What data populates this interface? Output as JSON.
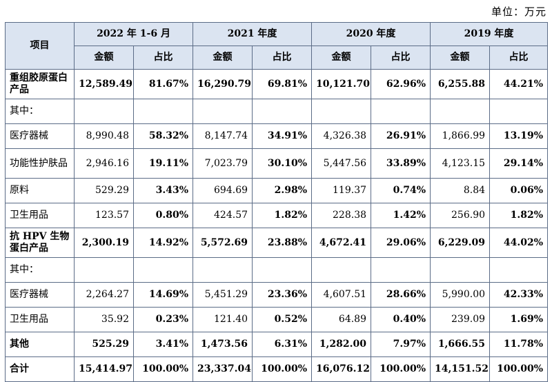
{
  "unit_label": "单位：万元",
  "header": {
    "project": "项目",
    "periods": [
      "2022 年 1-6 月",
      "2021 年度",
      "2020 年度",
      "2019 年度"
    ],
    "amount": "金额",
    "ratio": "占比"
  },
  "rows": [
    {
      "label": "重组胶原蛋白产品",
      "values": [
        "12,589.49",
        "81.67%",
        "16,290.79",
        "69.81%",
        "10,121.70",
        "62.96%",
        "6,255.88",
        "44.21%"
      ]
    },
    {
      "label": "其中：",
      "values": [
        "",
        "",
        "",
        "",
        "",
        "",
        "",
        ""
      ]
    },
    {
      "label": "医疗器械",
      "values": [
        "8,990.48",
        "58.32%",
        "8,147.74",
        "34.91%",
        "4,326.38",
        "26.91%",
        "1,866.99",
        "13.19%"
      ]
    },
    {
      "label": "功能性护肤品",
      "values": [
        "2,946.16",
        "19.11%",
        "7,023.79",
        "30.10%",
        "5,447.56",
        "33.89%",
        "4,123.15",
        "29.14%"
      ]
    },
    {
      "label": "原料",
      "values": [
        "529.29",
        "3.43%",
        "694.69",
        "2.98%",
        "119.37",
        "0.74%",
        "8.84",
        "0.06%"
      ]
    },
    {
      "label": "卫生用品",
      "values": [
        "123.57",
        "0.80%",
        "424.57",
        "1.82%",
        "228.38",
        "1.42%",
        "256.90",
        "1.82%"
      ]
    },
    {
      "label": "抗 HPV 生物蛋白产品",
      "values": [
        "2,300.19",
        "14.92%",
        "5,572.69",
        "23.88%",
        "4,672.41",
        "29.06%",
        "6,229.09",
        "44.02%"
      ]
    },
    {
      "label": "其中：",
      "values": [
        "",
        "",
        "",
        "",
        "",
        "",
        "",
        ""
      ]
    },
    {
      "label": "医疗器械",
      "values": [
        "2,264.27",
        "14.69%",
        "5,451.29",
        "23.36%",
        "4,607.51",
        "28.66%",
        "5,990.00",
        "42.33%"
      ]
    },
    {
      "label": "卫生用品",
      "values": [
        "35.92",
        "0.23%",
        "121.40",
        "0.52%",
        "64.89",
        "0.40%",
        "239.09",
        "1.69%"
      ]
    },
    {
      "label": "其他",
      "values": [
        "525.29",
        "3.41%",
        "1,473.56",
        "6.31%",
        "1,282.00",
        "7.97%",
        "1,666.55",
        "11.78%"
      ]
    },
    {
      "label": "合计",
      "values": [
        "15,414.97",
        "100.00%",
        "23,337.04",
        "100.00%",
        "16,076.12",
        "100.00%",
        "14,151.52",
        "100.00%"
      ]
    }
  ]
}
